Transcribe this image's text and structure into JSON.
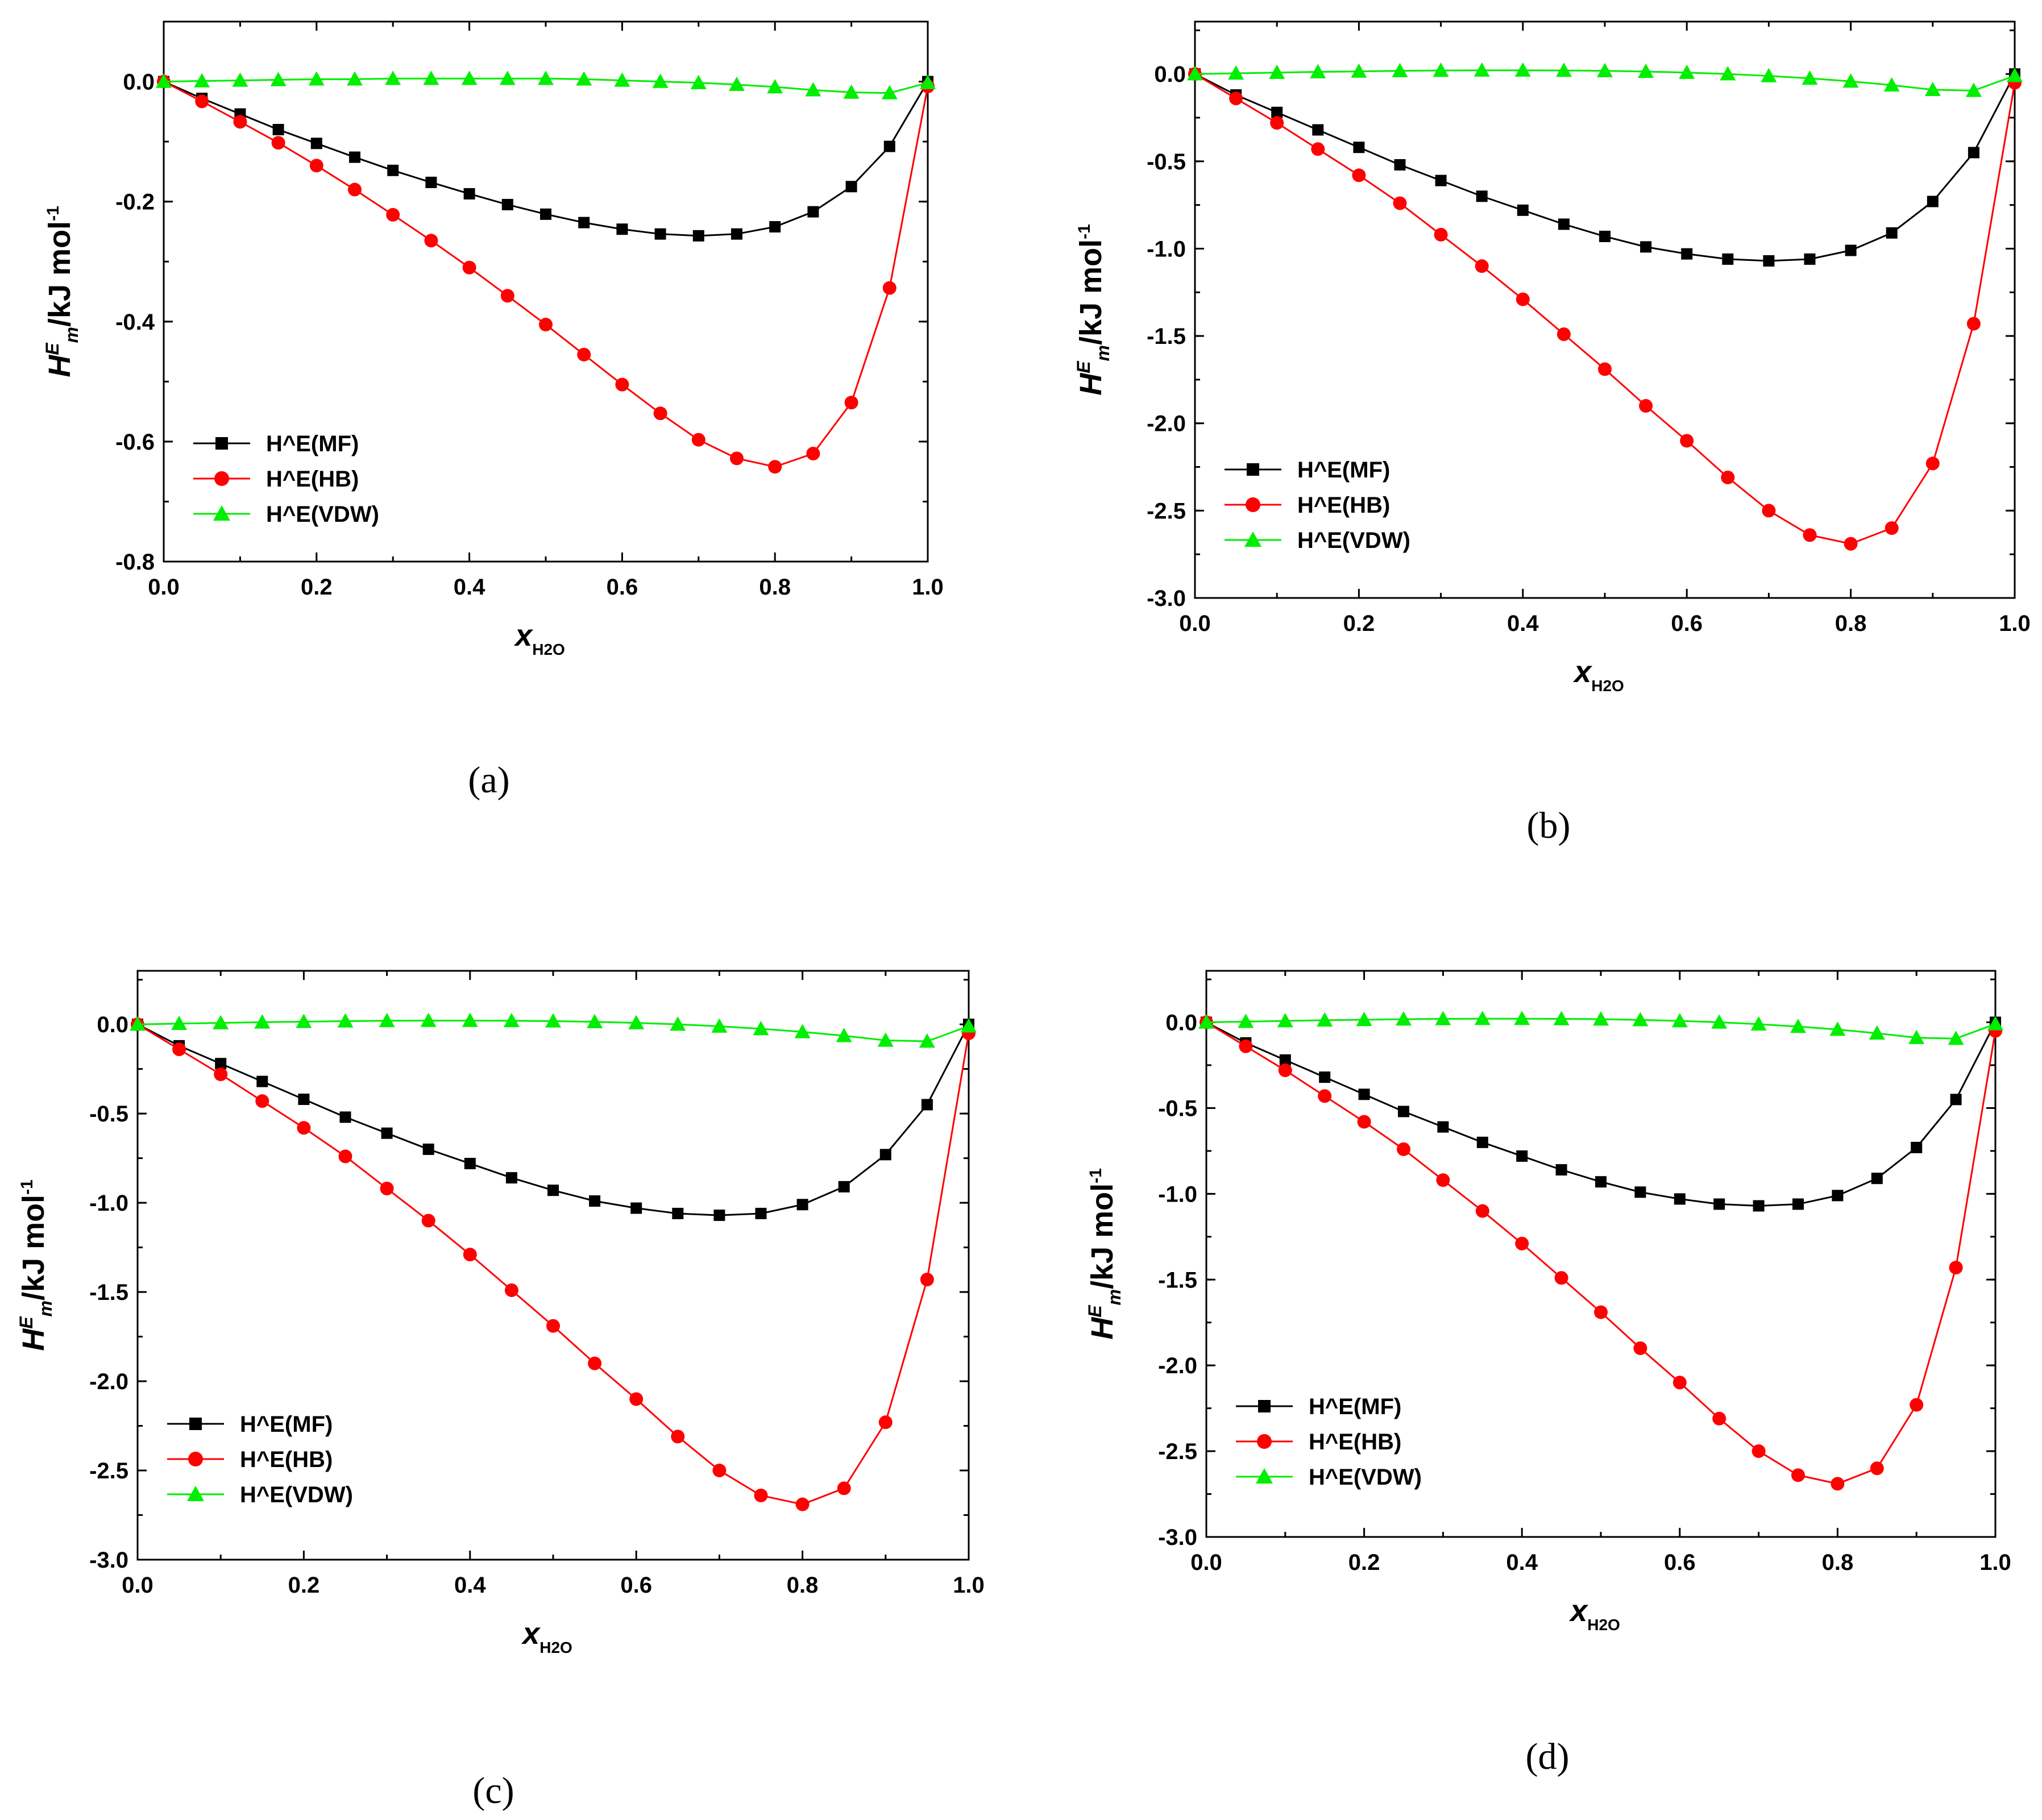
{
  "figure": {
    "panel_labels": [
      "(a)",
      "(b)",
      "(c)",
      "(d)"
    ]
  },
  "chart_data": [
    {
      "panel": "(a)",
      "type": "line",
      "xlabel": "x",
      "xlabel_sub": "H2O",
      "ylabel": "H^E_m/kJ mol^-1",
      "xlim": [
        0,
        1.0
      ],
      "ylim": [
        -0.8,
        0.1
      ],
      "xticks": [
        "0.0",
        "0.2",
        "0.4",
        "0.6",
        "0.8",
        "1.0"
      ],
      "yticks": [
        "0.0",
        "-0.2",
        "-0.4",
        "-0.6",
        "-0.8"
      ],
      "x": [
        0,
        0.05,
        0.1,
        0.15,
        0.2,
        0.25,
        0.3,
        0.35,
        0.4,
        0.45,
        0.5,
        0.55,
        0.6,
        0.65,
        0.7,
        0.75,
        0.8,
        0.85,
        0.9,
        0.95,
        1.0
      ],
      "legend_position": "bottom-left",
      "series": [
        {
          "name": "H^E(MF)",
          "color": "#000000",
          "marker": "square",
          "values": [
            0,
            -0.028,
            -0.054,
            -0.08,
            -0.103,
            -0.126,
            -0.148,
            -0.168,
            -0.187,
            -0.205,
            -0.221,
            -0.235,
            -0.246,
            -0.254,
            -0.257,
            -0.254,
            -0.242,
            -0.217,
            -0.175,
            -0.108,
            0
          ]
        },
        {
          "name": "H^E(HB)",
          "color": "#ff0000",
          "marker": "circle",
          "values": [
            0,
            -0.033,
            -0.067,
            -0.102,
            -0.14,
            -0.18,
            -0.222,
            -0.265,
            -0.31,
            -0.357,
            -0.405,
            -0.455,
            -0.505,
            -0.553,
            -0.597,
            -0.628,
            -0.642,
            -0.62,
            -0.535,
            -0.344,
            -0.008
          ]
        },
        {
          "name": "H^E(VDW)",
          "color": "#00ee00",
          "marker": "triangle",
          "values": [
            0,
            0.001,
            0.002,
            0.003,
            0.004,
            0.004,
            0.005,
            0.005,
            0.005,
            0.005,
            0.005,
            0.004,
            0.002,
            0.0,
            -0.002,
            -0.005,
            -0.009,
            -0.014,
            -0.018,
            -0.019,
            -0.002
          ]
        }
      ]
    },
    {
      "panel": "(b)",
      "type": "line",
      "xlabel": "x",
      "xlabel_sub": "H2O",
      "ylabel": "H^E_m/kJ mol^-1",
      "xlim": [
        0,
        1.0
      ],
      "ylim": [
        -3.0,
        0.3
      ],
      "xticks": [
        "0.0",
        "0.2",
        "0.4",
        "0.6",
        "0.8",
        "1.0"
      ],
      "yticks": [
        "0.0",
        "-0.5",
        "-1.0",
        "-1.5",
        "-2.0",
        "-2.5",
        "-3.0"
      ],
      "x": [
        0,
        0.05,
        0.1,
        0.15,
        0.2,
        0.25,
        0.3,
        0.35,
        0.4,
        0.45,
        0.5,
        0.55,
        0.6,
        0.65,
        0.7,
        0.75,
        0.8,
        0.85,
        0.9,
        0.95,
        1.0
      ],
      "legend_position": "bottom-left",
      "series": [
        {
          "name": "H^E(MF)",
          "color": "#000000",
          "marker": "square",
          "values": [
            0,
            -0.12,
            -0.22,
            -0.32,
            -0.42,
            -0.52,
            -0.61,
            -0.7,
            -0.78,
            -0.86,
            -0.93,
            -0.99,
            -1.03,
            -1.06,
            -1.07,
            -1.06,
            -1.01,
            -0.91,
            -0.73,
            -0.45,
            0
          ]
        },
        {
          "name": "H^E(HB)",
          "color": "#ff0000",
          "marker": "circle",
          "values": [
            0,
            -0.14,
            -0.28,
            -0.43,
            -0.58,
            -0.74,
            -0.92,
            -1.1,
            -1.29,
            -1.49,
            -1.69,
            -1.9,
            -2.1,
            -2.31,
            -2.5,
            -2.64,
            -2.69,
            -2.6,
            -2.23,
            -1.43,
            -0.05
          ]
        },
        {
          "name": "H^E(VDW)",
          "color": "#00ee00",
          "marker": "triangle",
          "values": [
            0,
            0.004,
            0.008,
            0.012,
            0.015,
            0.018,
            0.02,
            0.021,
            0.021,
            0.02,
            0.018,
            0.014,
            0.008,
            0.0,
            -0.011,
            -0.025,
            -0.042,
            -0.064,
            -0.09,
            -0.095,
            -0.01
          ]
        }
      ]
    },
    {
      "panel": "(c)",
      "type": "line",
      "xlabel": "x",
      "xlabel_sub": "H2O",
      "ylabel": "H^E_m/kJ mol^-1",
      "xlim": [
        0,
        1.0
      ],
      "ylim": [
        -3.0,
        0.3
      ],
      "xticks": [
        "0.0",
        "0.2",
        "0.4",
        "0.6",
        "0.8",
        "1.0"
      ],
      "yticks": [
        "0.0",
        "-0.5",
        "-1.0",
        "-1.5",
        "-2.0",
        "-2.5",
        "-3.0"
      ],
      "x": [
        0,
        0.05,
        0.1,
        0.15,
        0.2,
        0.25,
        0.3,
        0.35,
        0.4,
        0.45,
        0.5,
        0.55,
        0.6,
        0.65,
        0.7,
        0.75,
        0.8,
        0.85,
        0.9,
        0.95,
        1.0
      ],
      "legend_position": "bottom-left",
      "series": [
        {
          "name": "H^E(MF)",
          "color": "#000000",
          "marker": "square",
          "values": [
            0,
            -0.12,
            -0.22,
            -0.32,
            -0.42,
            -0.52,
            -0.61,
            -0.7,
            -0.78,
            -0.86,
            -0.93,
            -0.99,
            -1.03,
            -1.06,
            -1.07,
            -1.06,
            -1.01,
            -0.91,
            -0.73,
            -0.45,
            0
          ]
        },
        {
          "name": "H^E(HB)",
          "color": "#ff0000",
          "marker": "circle",
          "values": [
            0,
            -0.14,
            -0.28,
            -0.43,
            -0.58,
            -0.74,
            -0.92,
            -1.1,
            -1.29,
            -1.49,
            -1.69,
            -1.9,
            -2.1,
            -2.31,
            -2.5,
            -2.64,
            -2.69,
            -2.6,
            -2.23,
            -1.43,
            -0.05
          ]
        },
        {
          "name": "H^E(VDW)",
          "color": "#00ee00",
          "marker": "triangle",
          "values": [
            0,
            0.004,
            0.008,
            0.012,
            0.015,
            0.018,
            0.02,
            0.021,
            0.021,
            0.02,
            0.018,
            0.014,
            0.008,
            0.0,
            -0.011,
            -0.025,
            -0.042,
            -0.064,
            -0.09,
            -0.095,
            -0.01
          ]
        }
      ]
    },
    {
      "panel": "(d)",
      "type": "line",
      "xlabel": "x",
      "xlabel_sub": "H2O",
      "ylabel": "H^E_m/kJ mol^-1",
      "xlim": [
        0,
        1.0
      ],
      "ylim": [
        -3.0,
        0.3
      ],
      "xticks": [
        "0.0",
        "0.2",
        "0.4",
        "0.6",
        "0.8",
        "1.0"
      ],
      "yticks": [
        "0.0",
        "-0.5",
        "-1.0",
        "-1.5",
        "-2.0",
        "-2.5",
        "-3.0"
      ],
      "x": [
        0,
        0.05,
        0.1,
        0.15,
        0.2,
        0.25,
        0.3,
        0.35,
        0.4,
        0.45,
        0.5,
        0.55,
        0.6,
        0.65,
        0.7,
        0.75,
        0.8,
        0.85,
        0.9,
        0.95,
        1.0
      ],
      "legend_position": "bottom-left",
      "series": [
        {
          "name": "H^E(MF)",
          "color": "#000000",
          "marker": "square",
          "values": [
            0,
            -0.12,
            -0.22,
            -0.32,
            -0.42,
            -0.52,
            -0.61,
            -0.7,
            -0.78,
            -0.86,
            -0.93,
            -0.99,
            -1.03,
            -1.06,
            -1.07,
            -1.06,
            -1.01,
            -0.91,
            -0.73,
            -0.45,
            0
          ]
        },
        {
          "name": "H^E(HB)",
          "color": "#ff0000",
          "marker": "circle",
          "values": [
            0,
            -0.14,
            -0.28,
            -0.43,
            -0.58,
            -0.74,
            -0.92,
            -1.1,
            -1.29,
            -1.49,
            -1.69,
            -1.9,
            -2.1,
            -2.31,
            -2.5,
            -2.64,
            -2.69,
            -2.6,
            -2.23,
            -1.43,
            -0.05
          ]
        },
        {
          "name": "H^E(VDW)",
          "color": "#00ee00",
          "marker": "triangle",
          "values": [
            0,
            0.004,
            0.008,
            0.012,
            0.015,
            0.018,
            0.02,
            0.021,
            0.021,
            0.02,
            0.018,
            0.014,
            0.008,
            0.0,
            -0.011,
            -0.025,
            -0.042,
            -0.064,
            -0.09,
            -0.095,
            -0.01
          ]
        }
      ]
    }
  ]
}
